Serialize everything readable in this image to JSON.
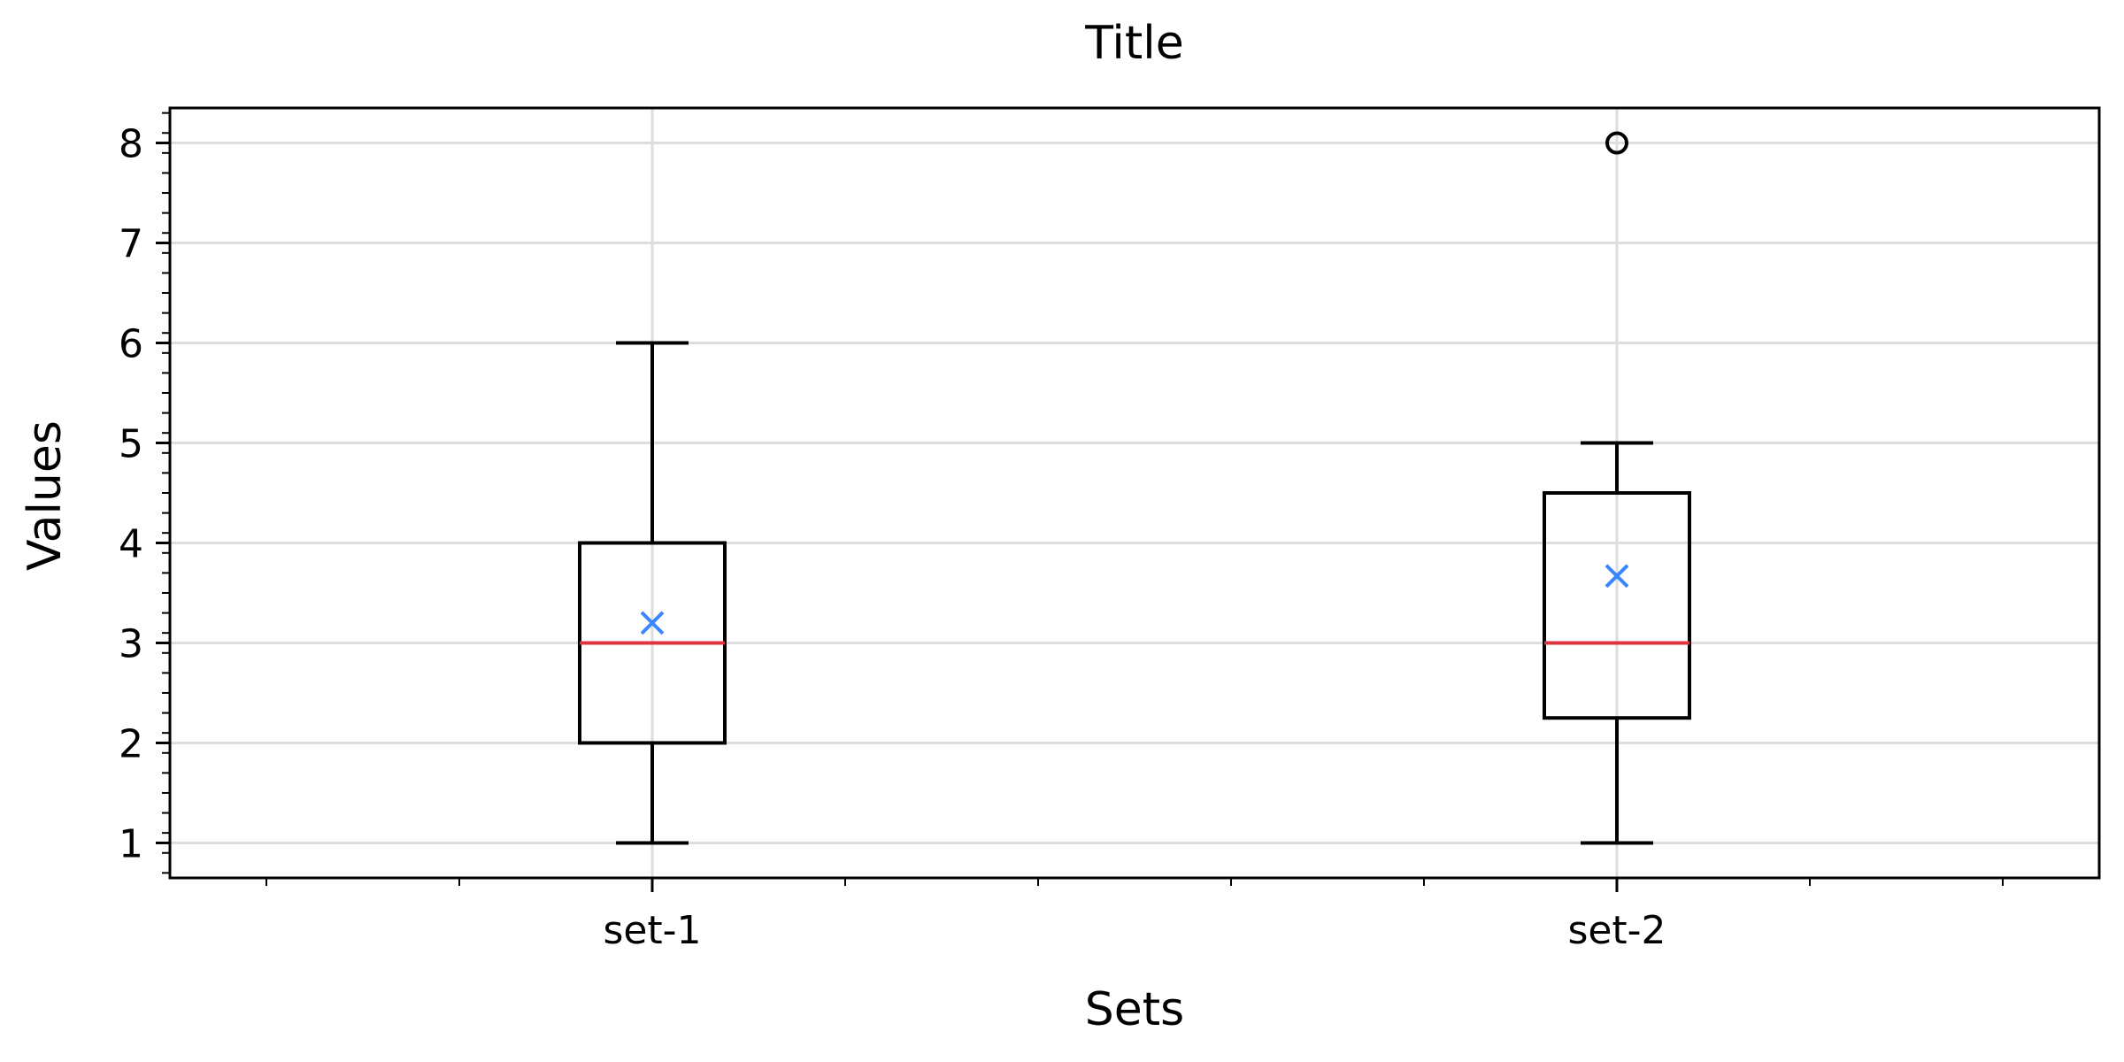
{
  "chart_data": {
    "type": "box",
    "title": "Title",
    "xlabel": "Sets",
    "ylabel": "Values",
    "categories": [
      "set-1",
      "set-2"
    ],
    "ylim": [
      0.65,
      8.35
    ],
    "y_ticks": [
      1,
      2,
      3,
      4,
      5,
      6,
      7,
      8
    ],
    "grid": true,
    "boxes": [
      {
        "name": "set-1",
        "whisker_low": 1,
        "q1": 2,
        "median": 3,
        "q3": 4,
        "whisker_high": 6,
        "mean": 3.2,
        "outliers": []
      },
      {
        "name": "set-2",
        "whisker_low": 1,
        "q1": 2.25,
        "median": 3,
        "q3": 4.5,
        "whisker_high": 5,
        "mean": 3.67,
        "outliers": [
          8
        ]
      }
    ],
    "colors": {
      "box": "#000000",
      "median": "#e0313f",
      "mean": "#3a86ff",
      "grid": "#dddddd"
    }
  }
}
